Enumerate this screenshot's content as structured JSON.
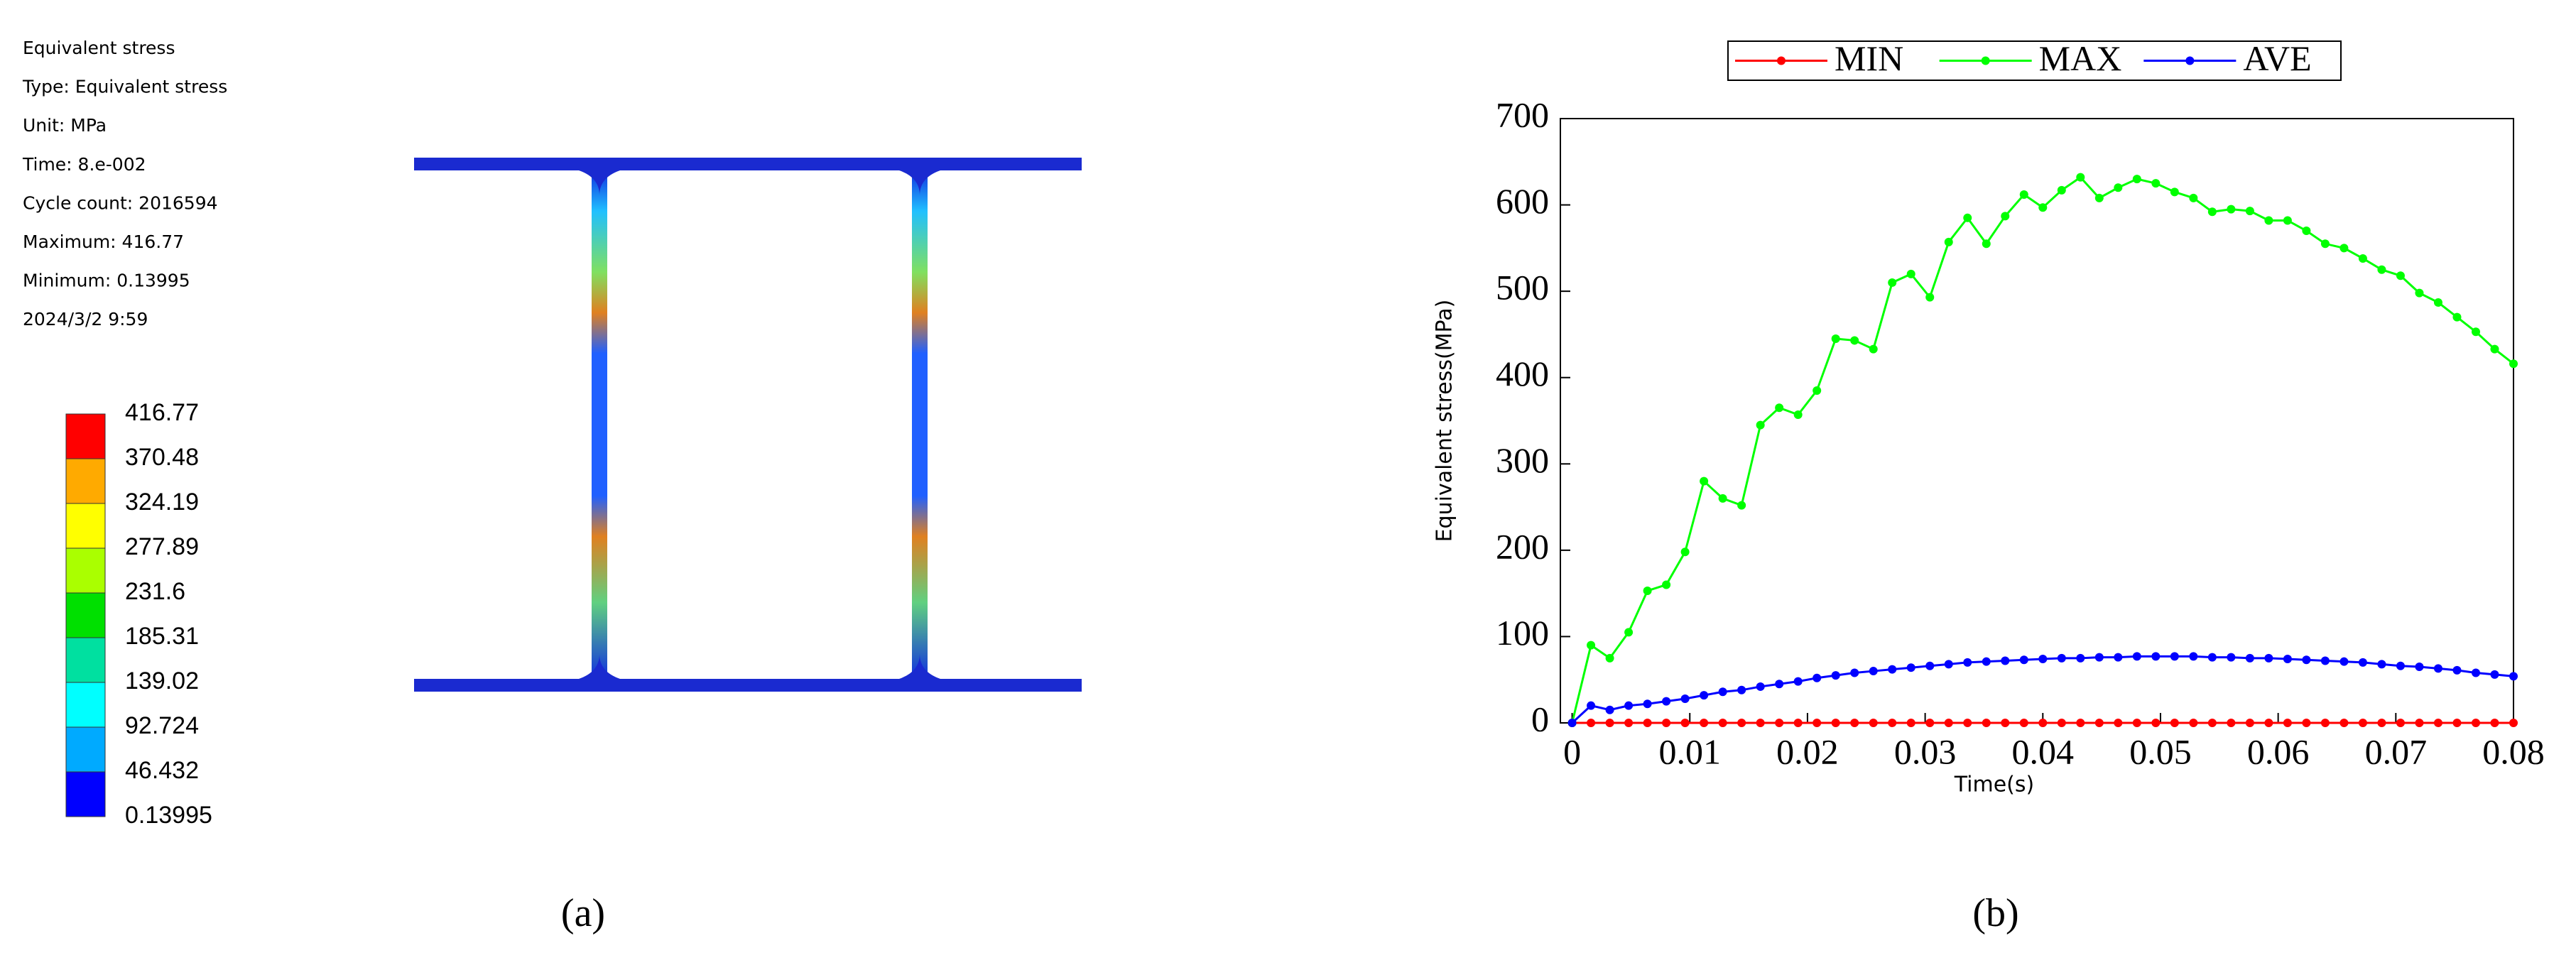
{
  "panel_a": {
    "info": [
      "Equivalent stress",
      "Type: Equivalent stress",
      "Unit: MPa",
      "Time: 8.e-002",
      "Cycle count: 2016594",
      "Maximum: 416.77",
      "Minimum: 0.13995",
      "2024/3/2 9:59"
    ],
    "colorbar": {
      "levels": [
        416.77,
        370.48,
        324.19,
        277.89,
        231.6,
        185.31,
        139.02,
        92.724,
        46.432,
        0.13995
      ],
      "colors": [
        "#ff0000",
        "#ffaa00",
        "#ffff00",
        "#aaff00",
        "#00e000",
        "#00e0a0",
        "#00ffff",
        "#00aaff",
        "#0000ff"
      ]
    },
    "caption": "(a)"
  },
  "chart_data": {
    "type": "line",
    "caption": "(b)",
    "x_label": "Time(s)",
    "y_label": "Equivalent stress(MPa)",
    "x": [
      0,
      0.0016,
      0.0032,
      0.0048,
      0.0064,
      0.008,
      0.0096,
      0.0112,
      0.0128,
      0.0144,
      0.016,
      0.0176,
      0.0192,
      0.0208,
      0.0224,
      0.024,
      0.0256,
      0.0272,
      0.0288,
      0.0304,
      0.032,
      0.0336,
      0.0352,
      0.0368,
      0.0384,
      0.04,
      0.0416,
      0.0432,
      0.0448,
      0.0464,
      0.048,
      0.0496,
      0.0512,
      0.0528,
      0.0544,
      0.056,
      0.0576,
      0.0592,
      0.0608,
      0.0624,
      0.064,
      0.0656,
      0.0672,
      0.0688,
      0.0704,
      0.072,
      0.0736,
      0.0752,
      0.0768,
      0.0784,
      0.08
    ],
    "series": [
      {
        "name": "MIN",
        "color": "#ff0000",
        "values": [
          0,
          0,
          0,
          0,
          0,
          0,
          0,
          0,
          0,
          0,
          0,
          0,
          0,
          0,
          0,
          0,
          0,
          0,
          0,
          0,
          0,
          0,
          0,
          0,
          0,
          0,
          0,
          0,
          0,
          0,
          0,
          0,
          0,
          0,
          0,
          0,
          0,
          0,
          0,
          0,
          0,
          0,
          0,
          0,
          0,
          0,
          0,
          0,
          0,
          0,
          0
        ]
      },
      {
        "name": "MAX",
        "color": "#00ff00",
        "values": [
          0,
          90,
          75,
          105,
          153,
          160,
          198,
          280,
          260,
          252,
          345,
          365,
          357,
          385,
          445,
          443,
          433,
          510,
          520,
          493,
          557,
          585,
          555,
          587,
          612,
          597,
          617,
          632,
          608,
          620,
          630,
          625,
          615,
          608,
          592,
          595,
          593,
          582,
          582,
          570,
          555,
          550,
          538,
          525,
          518,
          498,
          487,
          470,
          453,
          433,
          416
        ]
      },
      {
        "name": "AVE",
        "color": "#0000ff",
        "values": [
          0,
          20,
          15,
          20,
          22,
          25,
          28,
          32,
          36,
          38,
          42,
          45,
          48,
          52,
          55,
          58,
          60,
          62,
          64,
          66,
          68,
          70,
          71,
          72,
          73,
          74,
          75,
          75,
          76,
          76,
          77,
          77,
          77,
          77,
          76,
          76,
          75,
          75,
          74,
          73,
          72,
          71,
          70,
          68,
          66,
          65,
          63,
          61,
          58,
          56,
          54
        ]
      }
    ],
    "xlim": [
      -0.001,
      0.08
    ],
    "xticks": [
      0,
      0.01,
      0.02,
      0.03,
      0.04,
      0.05,
      0.06,
      0.07,
      0.08
    ],
    "ylim": [
      0,
      700
    ],
    "yticks": [
      0,
      100,
      200,
      300,
      400,
      500,
      600,
      700
    ],
    "legend": "top"
  }
}
